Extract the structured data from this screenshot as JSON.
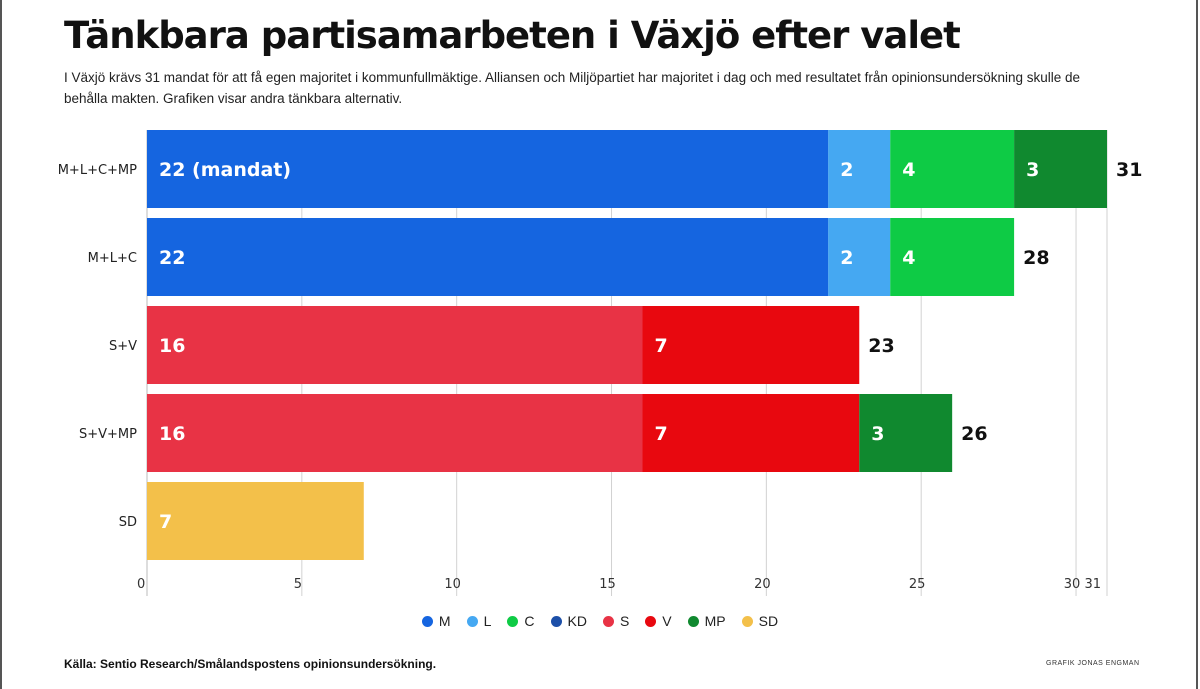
{
  "title": "Tänkbara partisamarbeten i Växjö efter valet",
  "subtitle": "I Växjö krävs 31 mandat för att få egen majoritet i kommunfullmäktige. Alliansen och Miljöpartiet har majoritet i dag och med resultatet från opinionsundersökning skulle de behålla makten. Grafiken visar andra tänkbara alternativ.",
  "source": "Källa: Sentio Research/Smålandspostens opinionsundersökning.",
  "credit": "GRAFIK JONAS ENGMAN",
  "parties": [
    {
      "key": "M",
      "label": "M",
      "color": "#1565e0"
    },
    {
      "key": "L",
      "label": "L",
      "color": "#45a8f2"
    },
    {
      "key": "C",
      "label": "C",
      "color": "#0ecb45"
    },
    {
      "key": "KD",
      "label": "KD",
      "color": "#1c4fa8"
    },
    {
      "key": "S",
      "label": "S",
      "color": "#e83345"
    },
    {
      "key": "V",
      "label": "V",
      "color": "#e8080f"
    },
    {
      "key": "MP",
      "label": "MP",
      "color": "#10892f"
    },
    {
      "key": "SD",
      "label": "SD",
      "color": "#f3c04a"
    }
  ],
  "chart_data": {
    "type": "bar",
    "orientation": "horizontal",
    "stacked": true,
    "title": "Tänkbara partisamarbeten i Växjö efter valet",
    "xlabel": "",
    "ylabel": "",
    "xlim": [
      0,
      31
    ],
    "x_ticks": [
      0,
      5,
      10,
      15,
      20,
      25,
      30,
      31
    ],
    "grid": true,
    "legend_position": "bottom-center",
    "categories": [
      "M+L+C+MP",
      "M+L+C",
      "S+V",
      "S+V+MP",
      "SD"
    ],
    "rows": [
      {
        "label": "M+L+C+MP",
        "total": 31,
        "segments": [
          {
            "party": "M",
            "value": 22,
            "label": "22 (mandat)"
          },
          {
            "party": "L",
            "value": 2,
            "label": "2"
          },
          {
            "party": "C",
            "value": 4,
            "label": "4"
          },
          {
            "party": "MP",
            "value": 3,
            "label": "3"
          }
        ]
      },
      {
        "label": "M+L+C",
        "total": 28,
        "segments": [
          {
            "party": "M",
            "value": 22,
            "label": "22"
          },
          {
            "party": "L",
            "value": 2,
            "label": "2"
          },
          {
            "party": "C",
            "value": 4,
            "label": "4"
          }
        ]
      },
      {
        "label": "S+V",
        "total": 23,
        "segments": [
          {
            "party": "S",
            "value": 16,
            "label": "16"
          },
          {
            "party": "V",
            "value": 7,
            "label": "7"
          }
        ]
      },
      {
        "label": "S+V+MP",
        "total": 26,
        "segments": [
          {
            "party": "S",
            "value": 16,
            "label": "16"
          },
          {
            "party": "V",
            "value": 7,
            "label": "7"
          },
          {
            "party": "MP",
            "value": 3,
            "label": "3"
          }
        ]
      },
      {
        "label": "SD",
        "total": null,
        "segments": [
          {
            "party": "SD",
            "value": 7,
            "label": "7"
          }
        ]
      }
    ]
  }
}
